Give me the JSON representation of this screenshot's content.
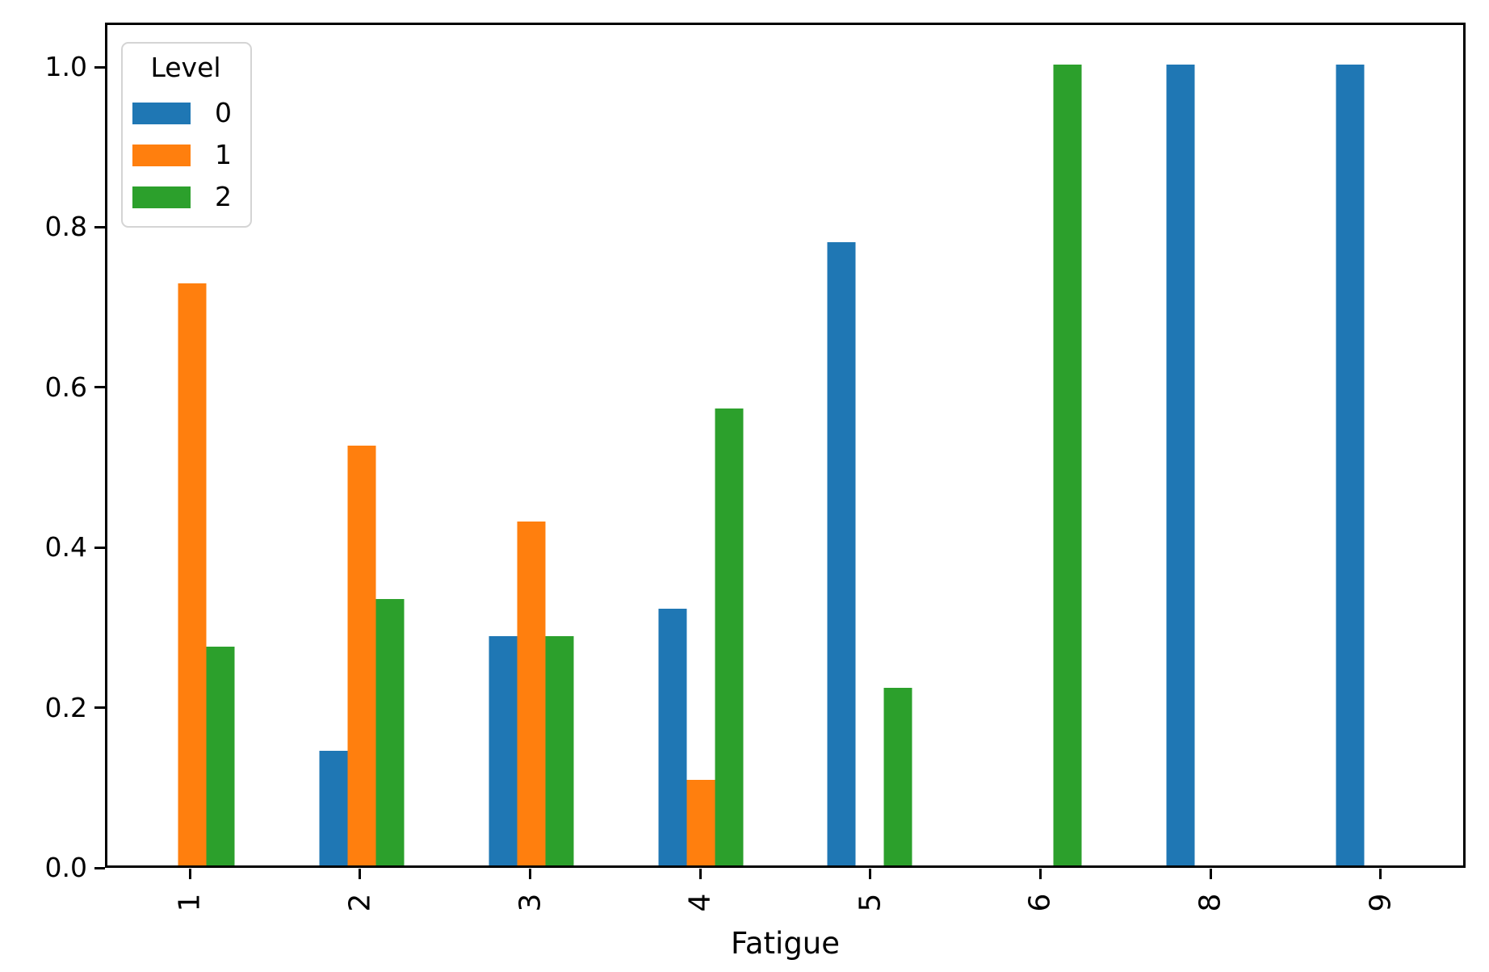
{
  "figure": {
    "background": "#ffffff",
    "text_color": "#000000",
    "spine_color": "#000000"
  },
  "legend": {
    "title": "Level",
    "entries": [
      {
        "label": "0",
        "color": "#1f77b4"
      },
      {
        "label": "1",
        "color": "#ff7f0e"
      },
      {
        "label": "2",
        "color": "#2ca02c"
      }
    ]
  },
  "chart_data": {
    "type": "bar",
    "title": "",
    "xlabel": "Fatigue",
    "ylabel": "",
    "categories": [
      "1",
      "2",
      "3",
      "4",
      "5",
      "6",
      "8",
      "9"
    ],
    "series": [
      {
        "name": "0",
        "color": "#1f77b4",
        "values": [
          0,
          0.143,
          0.286,
          0.321,
          0.778,
          0,
          1.0,
          1.0
        ]
      },
      {
        "name": "1",
        "color": "#ff7f0e",
        "values": [
          0.727,
          0.524,
          0.429,
          0.107,
          0,
          0,
          0,
          0
        ]
      },
      {
        "name": "2",
        "color": "#2ca02c",
        "values": [
          0.273,
          0.333,
          0.286,
          0.571,
          0.222,
          1.0,
          0,
          0
        ]
      }
    ],
    "yticks": [
      0.0,
      0.2,
      0.4,
      0.6,
      0.8,
      1.0
    ],
    "ytick_labels": [
      "0.0",
      "0.2",
      "0.4",
      "0.6",
      "0.8",
      "1.0"
    ],
    "ylim": [
      0,
      1.055
    ],
    "xtick_rotation": 90,
    "grid": false,
    "legend_position": "upper left",
    "legend_title": "Level",
    "bar_width_fraction": 0.5
  }
}
